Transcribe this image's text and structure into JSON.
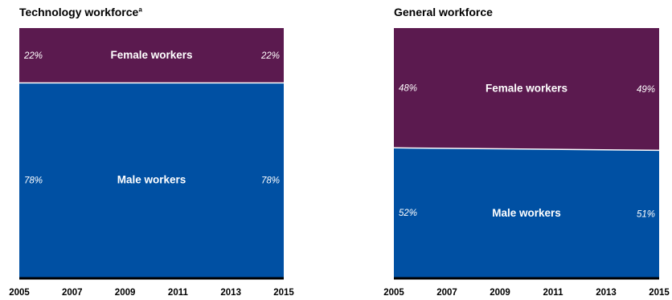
{
  "colors": {
    "female": "#5b1a4f",
    "male": "#0050a3",
    "axis": "#000000",
    "divider": "#ffffff"
  },
  "chart_data": [
    {
      "type": "area",
      "title": "Technology workforce",
      "title_superscript": "a",
      "x": [
        2005,
        2015
      ],
      "xticks": [
        "2005",
        "2007",
        "2009",
        "2011",
        "2013",
        "2015"
      ],
      "ylim": [
        0,
        100
      ],
      "stacking": "percent",
      "series": [
        {
          "name": "Male workers",
          "values": [
            78,
            78
          ],
          "labels": [
            "78%",
            "78%"
          ]
        },
        {
          "name": "Female workers",
          "values": [
            22,
            22
          ],
          "labels": [
            "22%",
            "22%"
          ]
        }
      ]
    },
    {
      "type": "area",
      "title": "General workforce",
      "title_superscript": "",
      "x": [
        2005,
        2015
      ],
      "xticks": [
        "2005",
        "2007",
        "2009",
        "2011",
        "2013",
        "2015"
      ],
      "ylim": [
        0,
        100
      ],
      "stacking": "percent",
      "series": [
        {
          "name": "Male workers",
          "values": [
            52,
            51
          ],
          "labels": [
            "52%",
            "51%"
          ]
        },
        {
          "name": "Female workers",
          "values": [
            48,
            49
          ],
          "labels": [
            "48%",
            "49%"
          ]
        }
      ]
    }
  ]
}
